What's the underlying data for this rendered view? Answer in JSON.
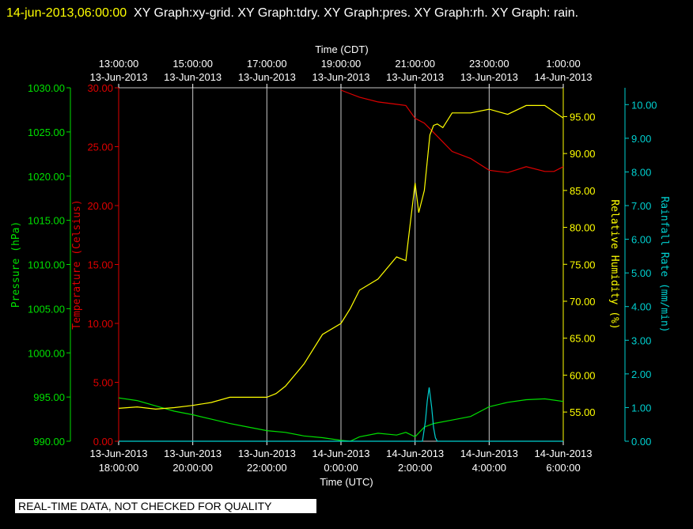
{
  "header": {
    "timestamp": "14-jun-2013,06:00:00",
    "graphs": "XY Graph:xy-grid.  XY Graph:tdry.  XY Graph:pres.  XY Graph:rh.  XY Graph: rain."
  },
  "notice": "REAL-TIME DATA, NOT CHECKED FOR QUALITY",
  "colors": {
    "background": "#000000",
    "grid": "#c8c8c8",
    "pressure": "#00e000",
    "temperature": "#e00000",
    "humidity": "#ffff00",
    "rainfall": "#00d0d0",
    "text": "#ffffff"
  },
  "chart_data": {
    "type": "line",
    "x_domain_hours": [
      0,
      12
    ],
    "grid": true,
    "x_bottom": {
      "label": "Time (UTC)",
      "ticks": [
        {
          "h": 0,
          "date": "13-Jun-2013",
          "time": "18:00:00"
        },
        {
          "h": 2,
          "date": "13-Jun-2013",
          "time": "20:00:00"
        },
        {
          "h": 4,
          "date": "13-Jun-2013",
          "time": "22:00:00"
        },
        {
          "h": 6,
          "date": "14-Jun-2013",
          "time": "0:00:00"
        },
        {
          "h": 8,
          "date": "14-Jun-2013",
          "time": "2:00:00"
        },
        {
          "h": 10,
          "date": "14-Jun-2013",
          "time": "4:00:00"
        },
        {
          "h": 12,
          "date": "14-Jun-2013",
          "time": "6:00:00"
        }
      ]
    },
    "x_top": {
      "label": "Time (CDT)",
      "ticks": [
        {
          "h": 0,
          "time": "13:00:00",
          "date": "13-Jun-2013"
        },
        {
          "h": 2,
          "time": "15:00:00",
          "date": "13-Jun-2013"
        },
        {
          "h": 4,
          "time": "17:00:00",
          "date": "13-Jun-2013"
        },
        {
          "h": 6,
          "time": "19:00:00",
          "date": "13-Jun-2013"
        },
        {
          "h": 8,
          "time": "21:00:00",
          "date": "13-Jun-2013"
        },
        {
          "h": 10,
          "time": "23:00:00",
          "date": "13-Jun-2013"
        },
        {
          "h": 12,
          "time": "1:00:00",
          "date": "14-Jun-2013"
        }
      ]
    },
    "axes": {
      "pressure": {
        "label": "Pressure (hPa)",
        "ylim": [
          990,
          1030
        ],
        "ticks": [
          "990.00",
          "995.00",
          "1000.00",
          "1005.00",
          "1010.00",
          "1015.00",
          "1020.00",
          "1025.00",
          "1030.00"
        ]
      },
      "temperature": {
        "label": "Temperature (Celsius)",
        "ylim": [
          0,
          30
        ],
        "ticks": [
          "0.00",
          "5.00",
          "10.00",
          "15.00",
          "20.00",
          "25.00",
          "30.00"
        ]
      },
      "humidity": {
        "label": "Relative Humidity (%)",
        "ylim": [
          51.05,
          98.9
        ],
        "ticks": [
          "55.00",
          "60.00",
          "65.00",
          "70.00",
          "75.00",
          "80.00",
          "85.00",
          "90.00",
          "95.00"
        ]
      },
      "rainfall": {
        "label": "Rainfall Rate (mm/min)",
        "ylim": [
          0,
          10.5
        ],
        "ticks": [
          "0.00",
          "1.00",
          "2.00",
          "3.00",
          "4.00",
          "5.00",
          "6.00",
          "7.00",
          "8.00",
          "9.00",
          "10.00"
        ]
      }
    },
    "series": [
      {
        "key": "pressure",
        "name": "Pressure (hPa)",
        "x": [
          0,
          0.5,
          1,
          1.5,
          2,
          2.5,
          3,
          3.5,
          4,
          4.5,
          5,
          5.5,
          6,
          6.25,
          6.5,
          7,
          7.5,
          7.75,
          8,
          8.25,
          8.5,
          9,
          9.5,
          10,
          10.5,
          11,
          11.5,
          12
        ],
        "y": [
          994.9,
          994.6,
          994.0,
          993.4,
          993.0,
          992.5,
          992.0,
          991.6,
          991.2,
          991.0,
          990.6,
          990.4,
          990.1,
          990.0,
          990.5,
          990.9,
          990.7,
          991.0,
          990.5,
          991.6,
          992.0,
          992.4,
          992.8,
          993.9,
          994.4,
          994.7,
          994.8,
          994.5
        ]
      },
      {
        "key": "temperature",
        "name": "Temperature (Celsius)",
        "x": [
          6,
          6.25,
          6.5,
          7,
          7.5,
          7.75,
          8,
          8.25,
          8.5,
          9,
          9.5,
          10,
          10.5,
          11,
          11.5,
          11.75,
          12
        ],
        "y": [
          29.8,
          29.5,
          29.2,
          28.8,
          28.6,
          28.5,
          27.4,
          27.0,
          26.2,
          24.6,
          24.0,
          23.0,
          22.8,
          23.3,
          22.9,
          22.9,
          23.3
        ]
      },
      {
        "key": "humidity",
        "name": "Relative Humidity (%)",
        "x": [
          0,
          0.5,
          1,
          1.5,
          2,
          2.5,
          3,
          3.5,
          4,
          4.25,
          4.5,
          5,
          5.5,
          6,
          6.25,
          6.5,
          7,
          7.5,
          7.75,
          8,
          8.1,
          8.25,
          8.4,
          8.5,
          8.6,
          8.75,
          9,
          9.5,
          10,
          10.5,
          11,
          11.5,
          12
        ],
        "y": [
          55.5,
          55.7,
          55.4,
          55.6,
          55.9,
          56.3,
          57.0,
          57.0,
          57.0,
          57.5,
          58.5,
          61.5,
          65.5,
          67.0,
          69.0,
          71.5,
          73.0,
          76.0,
          75.5,
          86.0,
          82.0,
          85.0,
          92.5,
          93.8,
          94.0,
          93.5,
          95.5,
          95.5,
          96.0,
          95.3,
          96.5,
          96.5,
          94.8
        ]
      },
      {
        "key": "rainfall",
        "name": "Rainfall Rate (mm/min)",
        "x": [
          0,
          8.2,
          8.28,
          8.33,
          8.38,
          8.45,
          8.5,
          8.55,
          8.6,
          12
        ],
        "y": [
          0,
          0,
          0.6,
          1.2,
          1.6,
          1.0,
          0.4,
          0.1,
          0,
          0
        ]
      }
    ]
  }
}
